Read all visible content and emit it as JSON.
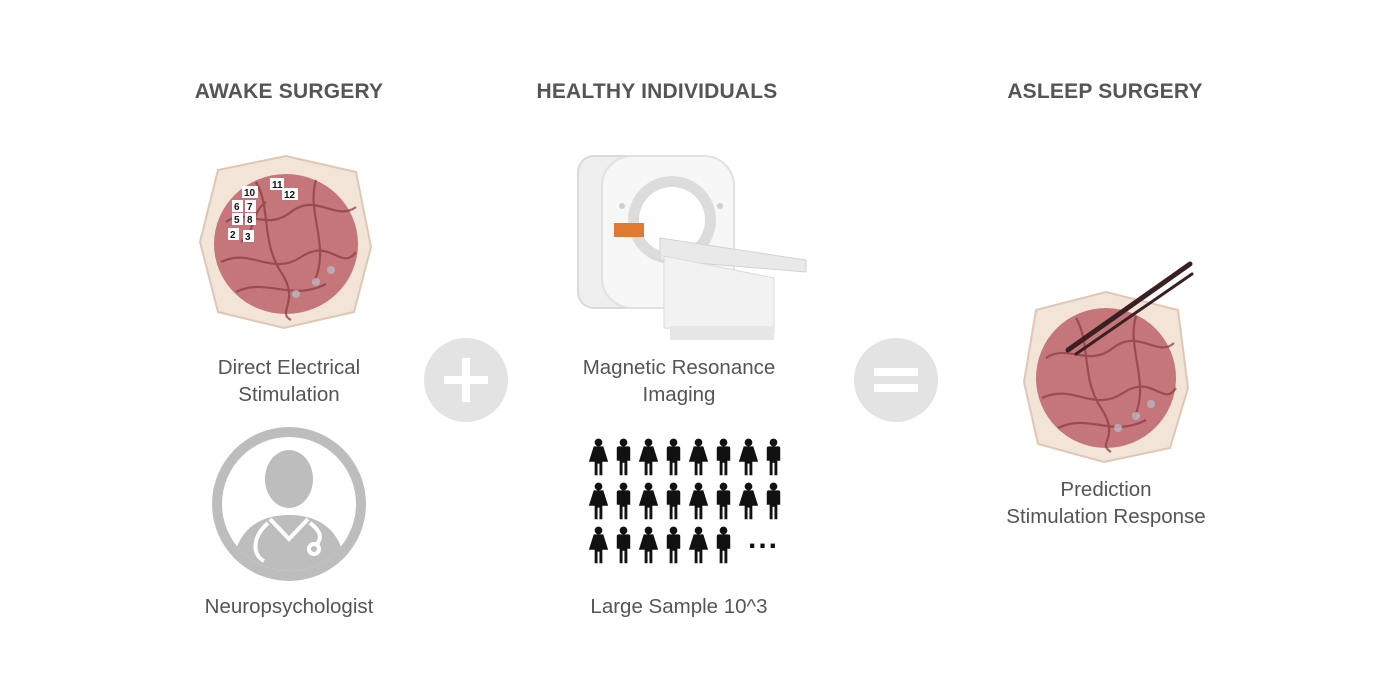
{
  "columns": [
    {
      "heading": "AWAKE SURGERY",
      "caption_lines": [
        "Direct Electrical",
        "Stimulation"
      ],
      "electrode_labels": [
        "10",
        "11",
        "12",
        "6",
        "7",
        "5",
        "8",
        "2",
        "3"
      ],
      "second_caption": "Neuropsychologist"
    },
    {
      "heading": "HEALTHY INDIVIDUALS",
      "caption_lines": [
        "Magnetic Resonance",
        "Imaging"
      ],
      "ellipsis": "...",
      "second_caption": "Large Sample 10^3"
    },
    {
      "heading": "ASLEEP SURGERY",
      "caption_lines": [
        "Prediction",
        "Stimulation Response"
      ]
    }
  ],
  "operators": {
    "plus": "plus-icon",
    "equals": "equals-icon"
  },
  "colors": {
    "text": "#555555",
    "operator_circle": "#e3e3e3",
    "brain": "#c4767a",
    "doctor_icon": "#bdbdbd"
  }
}
